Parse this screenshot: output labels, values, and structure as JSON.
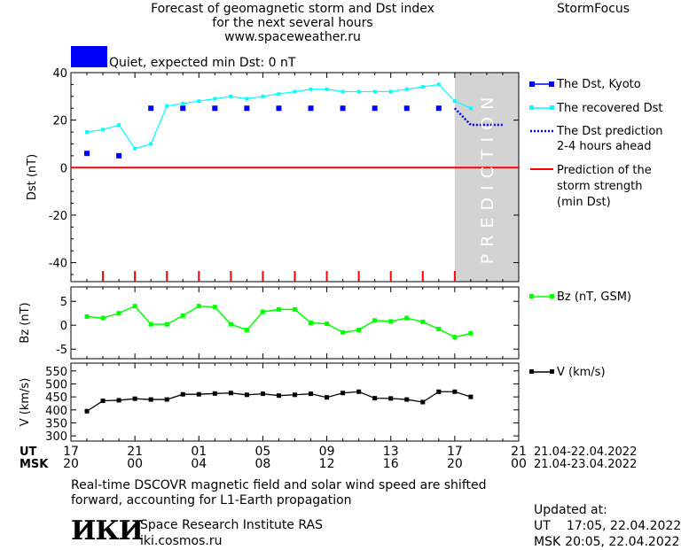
{
  "header": {
    "title_line1": "Forecast of geomagnetic storm and Dst index",
    "title_line2": "for the next several hours",
    "title_line3": "www.spaceweather.ru",
    "brand": "StormFocus"
  },
  "status": {
    "text": "Quiet, expected min Dst: 0 nT",
    "color": "#0000ff"
  },
  "colors": {
    "dst_kyoto": "#0000ff",
    "dst_recovered": "#00ffff",
    "dst_prediction": "#0000ff",
    "storm_line": "#ff0000",
    "bz": "#00ff00",
    "v": "#000000",
    "prediction_zone": "#d3d3d3"
  },
  "legend": {
    "dst_kyoto": "The Dst, Kyoto",
    "dst_recovered": "The recovered Dst",
    "dst_pred_1": "The Dst prediction",
    "dst_pred_2": "2-4 hours ahead",
    "storm_1": "Prediction of the",
    "storm_2": "storm strength",
    "storm_3": "(min Dst)",
    "bz": "Bz (nT, GSM)",
    "v": "V (km/s)"
  },
  "prediction_label": "PREDICTION",
  "chart_data": [
    {
      "type": "line",
      "ylabel": "Dst (nT)",
      "ylim": [
        -48,
        40
      ],
      "y_ticks": [
        40,
        20,
        0,
        -20,
        -40
      ],
      "x_unit": "hours UT from 17:00 21.04.2022",
      "xlim": [
        0,
        28
      ],
      "prediction_zone_x": [
        24,
        28
      ],
      "grid": false,
      "storm_strength_min_dst": 0,
      "series": [
        {
          "name": "The Dst, Kyoto",
          "style": "squares",
          "x": [
            1,
            3,
            5,
            7,
            9,
            11,
            13,
            15,
            17,
            19,
            21,
            23
          ],
          "y": [
            6,
            5,
            25,
            25,
            25,
            25,
            25,
            25,
            25,
            25,
            25,
            25
          ]
        },
        {
          "name": "The recovered Dst",
          "style": "line-markers",
          "x": [
            1,
            2,
            3,
            4,
            5,
            6,
            7,
            8,
            9,
            10,
            11,
            12,
            13,
            14,
            15,
            16,
            17,
            18,
            19,
            20,
            21,
            22,
            23,
            24,
            25
          ],
          "y": [
            15,
            16,
            18,
            8,
            10,
            26,
            27,
            28,
            29,
            30,
            29,
            30,
            31,
            32,
            33,
            33,
            32,
            32,
            32,
            32,
            33,
            34,
            35,
            28,
            25
          ]
        },
        {
          "name": "The Dst prediction 2-4 hours ahead",
          "style": "dotted",
          "x": [
            24,
            25,
            26,
            27
          ],
          "y": [
            25,
            18,
            18,
            18
          ]
        }
      ]
    },
    {
      "type": "line",
      "ylabel": "Bz (nT)",
      "ylim": [
        -7,
        8
      ],
      "y_ticks": [
        5,
        0,
        -5
      ],
      "xlim": [
        0,
        28
      ],
      "series": [
        {
          "name": "Bz (nT, GSM)",
          "x": [
            1,
            2,
            3,
            4,
            5,
            6,
            7,
            8,
            9,
            10,
            11,
            12,
            13,
            14,
            15,
            16,
            17,
            18,
            19,
            20,
            21,
            22,
            23,
            24,
            25
          ],
          "y": [
            1.8,
            1.5,
            2.5,
            4.0,
            0.2,
            0.2,
            2.0,
            4.0,
            3.8,
            0.2,
            -1.0,
            2.8,
            3.3,
            3.3,
            0.5,
            0.3,
            -1.5,
            -1.0,
            1.0,
            0.8,
            1.5,
            0.7,
            -0.8,
            -2.5,
            -1.7
          ]
        }
      ]
    },
    {
      "type": "line",
      "ylabel": "V (km/s)",
      "ylim": [
        280,
        580
      ],
      "y_ticks": [
        550,
        500,
        450,
        400,
        350,
        300
      ],
      "xlim": [
        0,
        28
      ],
      "series": [
        {
          "name": "V (km/s)",
          "x": [
            1,
            2,
            3,
            4,
            5,
            6,
            7,
            8,
            9,
            10,
            11,
            12,
            13,
            14,
            15,
            16,
            17,
            18,
            19,
            20,
            21,
            22,
            23,
            24,
            25
          ],
          "y": [
            395,
            435,
            437,
            443,
            440,
            440,
            460,
            460,
            463,
            465,
            458,
            462,
            455,
            458,
            462,
            448,
            465,
            470,
            445,
            444,
            440,
            430,
            470,
            470,
            450
          ]
        }
      ]
    }
  ],
  "x_axis": {
    "ut_label": "UT",
    "msk_label": "MSK",
    "tick_x": [
      0,
      4,
      8,
      12,
      16,
      20,
      24,
      28
    ],
    "ut_ticks": [
      "17",
      "21",
      "01",
      "05",
      "09",
      "13",
      "17",
      "21"
    ],
    "msk_ticks": [
      "20",
      "00",
      "04",
      "08",
      "12",
      "16",
      "20",
      "00"
    ],
    "ut_range": "21.04-22.04.2022",
    "msk_range": "21.04-23.04.2022"
  },
  "footer": {
    "note_line1": "Real-time DSCOVR magnetic field and solar wind speed are shifted",
    "note_line2": "forward, accounting for L1-Earth propagation",
    "logo_text": "ИКИ",
    "institute_name": "Space Research Institute RAS",
    "institute_url": "iki.cosmos.ru",
    "updated_label": "Updated at:",
    "updated_ut_label": "UT",
    "updated_ut_value": "17:05, 22.04.2022",
    "updated_msk_label": "MSK",
    "updated_msk_value": "20:05, 22.04.2022"
  }
}
